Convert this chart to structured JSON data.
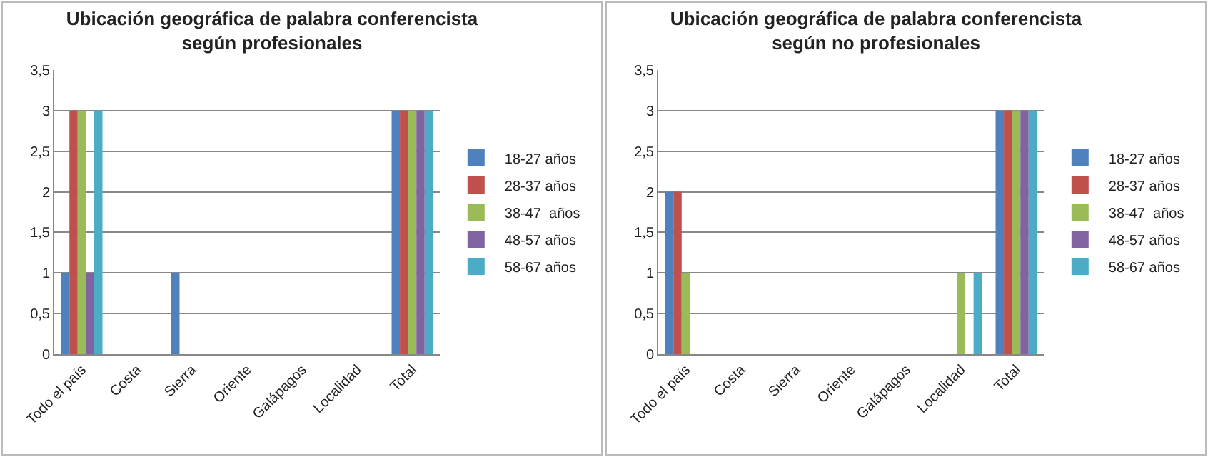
{
  "chart_data": [
    {
      "type": "bar",
      "title": "Ubicación geográfica de palabra conferencista\nsegún profesionales",
      "categories": [
        "Todo el país",
        "Costa",
        "Sierra",
        "Oriente",
        "Galápagos",
        "Localidad",
        "Total"
      ],
      "series": [
        {
          "name": "18-27 años",
          "color": "#4f81bd",
          "values": [
            1,
            0,
            1,
            0,
            0,
            0,
            3
          ]
        },
        {
          "name": "28-37 años",
          "color": "#c0504d",
          "values": [
            3,
            0,
            0,
            0,
            0,
            0,
            3
          ]
        },
        {
          "name": "38-47  años",
          "color": "#9bbb59",
          "values": [
            3,
            0,
            0,
            0,
            0,
            0,
            3
          ]
        },
        {
          "name": "48-57 años",
          "color": "#8064a2",
          "values": [
            1,
            0,
            0,
            0,
            0,
            0,
            3
          ]
        },
        {
          "name": "58-67 años",
          "color": "#4bacc6",
          "values": [
            3,
            0,
            0,
            0,
            0,
            0,
            3
          ]
        }
      ],
      "ylim": [
        0,
        3.5
      ],
      "yticks": [
        0,
        {
          "value": 0.5,
          "label": "0,5"
        },
        1,
        {
          "value": 1.5,
          "label": "1,5"
        },
        2,
        {
          "value": 2.5,
          "label": "2,5"
        },
        3,
        {
          "value": 3.5,
          "label": "3,5"
        }
      ],
      "grid": "y",
      "legend": "right"
    },
    {
      "type": "bar",
      "title": "Ubicación geográfica de palabra conferencista\nsegún no profesionales",
      "categories": [
        "Todo el país",
        "Costa",
        "Sierra",
        "Oriente",
        "Galápagos",
        "Localidad",
        "Total"
      ],
      "series": [
        {
          "name": "18-27 años",
          "color": "#4f81bd",
          "values": [
            2,
            0,
            0,
            0,
            0,
            0,
            3
          ]
        },
        {
          "name": "28-37 años",
          "color": "#c0504d",
          "values": [
            2,
            0,
            0,
            0,
            0,
            0,
            3
          ]
        },
        {
          "name": "38-47  años",
          "color": "#9bbb59",
          "values": [
            1,
            0,
            0,
            0,
            0,
            1,
            3
          ]
        },
        {
          "name": "48-57 años",
          "color": "#8064a2",
          "values": [
            0,
            0,
            0,
            0,
            0,
            0,
            3
          ]
        },
        {
          "name": "58-67 años",
          "color": "#4bacc6",
          "values": [
            0,
            0,
            0,
            0,
            0,
            1,
            3
          ]
        }
      ],
      "ylim": [
        0,
        3.5
      ],
      "yticks": [
        0,
        {
          "value": 0.5,
          "label": "0,5"
        },
        1,
        {
          "value": 1.5,
          "label": "1,5"
        },
        2,
        {
          "value": 2.5,
          "label": "2,5"
        },
        3,
        {
          "value": 3.5,
          "label": "3,5"
        }
      ],
      "grid": "y",
      "legend": "right"
    }
  ]
}
